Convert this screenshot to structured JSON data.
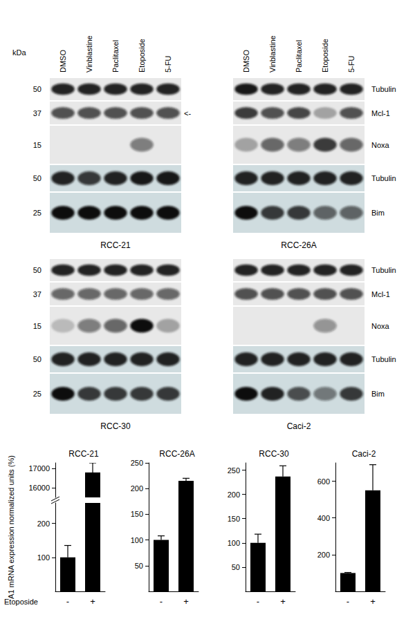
{
  "blots": {
    "lanes": [
      "DMSO",
      "Vinblastine",
      "Paclitaxel",
      "Etoposide",
      "5-FU"
    ],
    "mw_unit": "kDa",
    "blocks": [
      [
        {
          "protein": "Tubulin",
          "marker": 50
        },
        {
          "protein": "Mcl-1",
          "marker": 37
        },
        {
          "protein": "Noxa",
          "marker": 15
        }
      ],
      [
        {
          "protein": "Tubulin",
          "marker": 50
        },
        {
          "protein": "Bim",
          "marker": 25
        }
      ]
    ],
    "panels": [
      {
        "name": "RCC-21",
        "annotation": {
          "row": "Mcl-1",
          "text": "<-"
        },
        "band_intensity": [
          [
            [
              0.9,
              0.9,
              0.9,
              0.9,
              0.9
            ],
            [
              0.7,
              0.7,
              0.7,
              0.7,
              0.7
            ],
            [
              0,
              0,
              0,
              0.5,
              0
            ]
          ],
          [
            [
              0.9,
              0.8,
              0.9,
              0.95,
              0.95
            ],
            [
              1,
              1,
              1,
              1,
              1
            ]
          ]
        ]
      },
      {
        "name": "RCC-26A",
        "band_intensity": [
          [
            [
              0.95,
              0.9,
              0.9,
              0.9,
              0.9
            ],
            [
              0.8,
              0.7,
              0.75,
              0.3,
              0.7
            ],
            [
              0.3,
              0.6,
              0.5,
              0.8,
              0.6
            ]
          ],
          [
            [
              0.9,
              0.9,
              0.9,
              0.9,
              0.9
            ],
            [
              1,
              0.8,
              0.8,
              0.6,
              0.6
            ]
          ]
        ]
      },
      {
        "name": "RCC-30",
        "band_intensity": [
          [
            [
              0.9,
              0.9,
              0.9,
              0.9,
              0.9
            ],
            [
              0.6,
              0.6,
              0.6,
              0.6,
              0.6
            ],
            [
              0.2,
              0.5,
              0.6,
              1,
              0.3
            ]
          ],
          [
            [
              0.9,
              0.9,
              0.9,
              0.9,
              0.9
            ],
            [
              1,
              0.8,
              0.8,
              0.8,
              0.8
            ]
          ]
        ]
      },
      {
        "name": "Caci-2",
        "band_intensity": [
          [
            [
              0.9,
              0.9,
              0.9,
              0.9,
              0.9
            ],
            [
              0.7,
              0.7,
              0.7,
              0.7,
              0.7
            ],
            [
              0,
              0,
              0,
              0.4,
              0
            ]
          ],
          [
            [
              0.9,
              0.9,
              0.9,
              0.9,
              0.9
            ],
            [
              1,
              0.9,
              0.7,
              0.5,
              0.8
            ]
          ]
        ]
      }
    ]
  },
  "y_label": "A1 mRNA expression normalized units (%)",
  "x_label": "Etoposide",
  "chart_data": [
    {
      "type": "bar",
      "title": "RCC-21",
      "categories": [
        "-",
        "+"
      ],
      "values": [
        100,
        16800
      ],
      "errors": [
        35,
        500
      ],
      "color": "#000000",
      "ylim": [
        0,
        17300
      ],
      "ybreak": [
        260,
        15500
      ],
      "yticks": [
        100,
        200,
        16000,
        17000
      ],
      "grid": false
    },
    {
      "type": "bar",
      "title": "RCC-26A",
      "categories": [
        "-",
        "+"
      ],
      "values": [
        100,
        215
      ],
      "errors": [
        8,
        5
      ],
      "color": "#000000",
      "ylim": [
        0,
        250
      ],
      "yticks": [
        50,
        100,
        150,
        200,
        250
      ],
      "grid": false
    },
    {
      "type": "bar",
      "title": "RCC-30",
      "categories": [
        "-",
        "+"
      ],
      "values": [
        100,
        237
      ],
      "errors": [
        18,
        22
      ],
      "color": "#000000",
      "ylim": [
        0,
        265
      ],
      "yticks": [
        50,
        100,
        150,
        200,
        250
      ],
      "grid": false
    },
    {
      "type": "bar",
      "title": "Caci-2",
      "categories": [
        "-",
        "+"
      ],
      "values": [
        100,
        550
      ],
      "errors": [
        3,
        140
      ],
      "color": "#000000",
      "ylim": [
        0,
        700
      ],
      "yticks": [
        200,
        400,
        600
      ],
      "grid": false
    }
  ]
}
